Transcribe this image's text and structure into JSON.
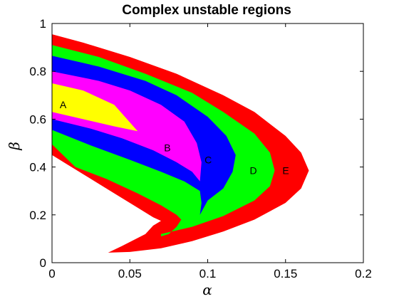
{
  "chart_data": {
    "type": "area",
    "title": "Complex unstable regions",
    "xlabel": "α",
    "ylabel": "β",
    "xlim": [
      0,
      0.2
    ],
    "ylim": [
      0,
      1
    ],
    "xticks": [
      "0",
      "0.05",
      "0.1",
      "0.15",
      "0.2"
    ],
    "xtick_values": [
      0,
      0.05,
      0.1,
      0.15,
      0.2
    ],
    "yticks": [
      "0",
      "0.2",
      "0.4",
      "0.6",
      "0.8",
      "1"
    ],
    "ytick_values": [
      0,
      0.2,
      0.4,
      0.6,
      0.8,
      1
    ],
    "grid": false,
    "series": [
      {
        "label": "E",
        "color": "#ff0000",
        "label_pos": [
          0.148,
          0.385
        ],
        "outline": [
          [
            0,
            0.955
          ],
          [
            0.02,
            0.92
          ],
          [
            0.05,
            0.86
          ],
          [
            0.08,
            0.79
          ],
          [
            0.11,
            0.7
          ],
          [
            0.13,
            0.63
          ],
          [
            0.15,
            0.53
          ],
          [
            0.16,
            0.46
          ],
          [
            0.165,
            0.385
          ],
          [
            0.16,
            0.31
          ],
          [
            0.15,
            0.25
          ],
          [
            0.13,
            0.18
          ],
          [
            0.11,
            0.13
          ],
          [
            0.09,
            0.09
          ],
          [
            0.07,
            0.06
          ],
          [
            0.05,
            0.045
          ],
          [
            0.036,
            0.042
          ],
          [
            0.045,
            0.07
          ],
          [
            0.06,
            0.12
          ],
          [
            0.065,
            0.155
          ],
          [
            0.07,
            0.175
          ],
          [
            0.065,
            0.19
          ],
          [
            0.055,
            0.23
          ],
          [
            0.04,
            0.29
          ],
          [
            0.025,
            0.35
          ],
          [
            0.01,
            0.41
          ],
          [
            0,
            0.45
          ]
        ]
      },
      {
        "label": "D",
        "color": "#00ff00",
        "label_pos": [
          0.127,
          0.385
        ],
        "outline": [
          [
            0,
            0.91
          ],
          [
            0.03,
            0.86
          ],
          [
            0.06,
            0.79
          ],
          [
            0.09,
            0.71
          ],
          [
            0.11,
            0.63
          ],
          [
            0.13,
            0.54
          ],
          [
            0.14,
            0.46
          ],
          [
            0.143,
            0.385
          ],
          [
            0.14,
            0.32
          ],
          [
            0.13,
            0.26
          ],
          [
            0.11,
            0.195
          ],
          [
            0.09,
            0.15
          ],
          [
            0.07,
            0.12
          ],
          [
            0.07,
            0.11
          ],
          [
            0.075,
            0.12
          ],
          [
            0.08,
            0.15
          ],
          [
            0.083,
            0.18
          ],
          [
            0.08,
            0.2
          ],
          [
            0.07,
            0.24
          ],
          [
            0.055,
            0.29
          ],
          [
            0.035,
            0.35
          ],
          [
            0.015,
            0.4
          ],
          [
            0,
            0.495
          ]
        ]
      },
      {
        "label": "C",
        "color": "#0000ff",
        "label_pos": [
          0.098,
          0.43
        ],
        "outline": [
          [
            0,
            0.865
          ],
          [
            0.03,
            0.82
          ],
          [
            0.06,
            0.76
          ],
          [
            0.08,
            0.7
          ],
          [
            0.1,
            0.61
          ],
          [
            0.112,
            0.53
          ],
          [
            0.118,
            0.45
          ],
          [
            0.116,
            0.38
          ],
          [
            0.11,
            0.31
          ],
          [
            0.1,
            0.26
          ],
          [
            0.095,
            0.2
          ],
          [
            0.096,
            0.25
          ],
          [
            0.095,
            0.3
          ],
          [
            0.085,
            0.34
          ],
          [
            0.07,
            0.38
          ],
          [
            0.05,
            0.43
          ],
          [
            0.025,
            0.49
          ],
          [
            0,
            0.555
          ]
        ]
      },
      {
        "label": "B",
        "color": "#ff00ff",
        "label_pos": [
          0.072,
          0.48
        ],
        "outline": [
          [
            0,
            0.8
          ],
          [
            0.03,
            0.76
          ],
          [
            0.05,
            0.72
          ],
          [
            0.07,
            0.66
          ],
          [
            0.085,
            0.59
          ],
          [
            0.093,
            0.5
          ],
          [
            0.096,
            0.42
          ],
          [
            0.095,
            0.34
          ],
          [
            0.09,
            0.38
          ],
          [
            0.08,
            0.42
          ],
          [
            0.065,
            0.47
          ],
          [
            0.045,
            0.52
          ],
          [
            0.025,
            0.56
          ],
          [
            0,
            0.6
          ]
        ]
      },
      {
        "label": "A",
        "color": "#ffff00",
        "label_pos": [
          0.005,
          0.66
        ],
        "outline": [
          [
            0,
            0.75
          ],
          [
            0.02,
            0.72
          ],
          [
            0.04,
            0.66
          ],
          [
            0.055,
            0.55
          ],
          [
            0.04,
            0.57
          ],
          [
            0.02,
            0.6
          ],
          [
            0,
            0.63
          ]
        ]
      }
    ]
  }
}
